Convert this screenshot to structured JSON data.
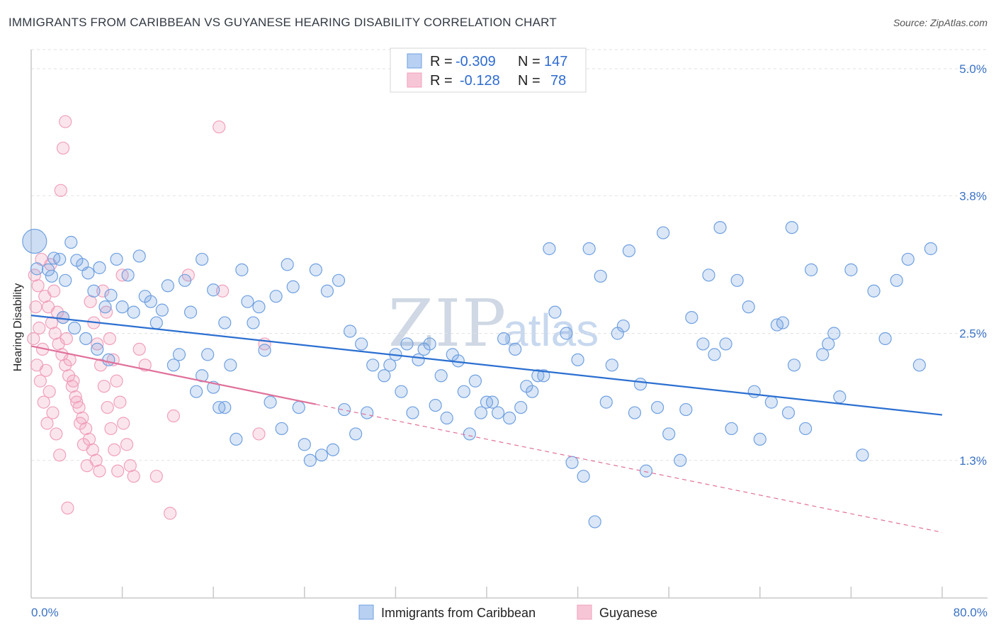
{
  "title": "IMMIGRANTS FROM CARIBBEAN VS GUYANESE HEARING DISABILITY CORRELATION CHART",
  "source": "Source: ZipAtlas.com",
  "watermark": {
    "zip": "ZIP",
    "atlas": "atlas"
  },
  "legend": {
    "rows": [
      {
        "r_label": "R =",
        "r_value": "-0.309",
        "n_label": "N =",
        "n_value": "147"
      },
      {
        "r_label": "R =",
        "r_value": "-0.128",
        "n_label": "N =",
        "n_value": "78"
      }
    ]
  },
  "chart_data": {
    "type": "scatter",
    "title": "IMMIGRANTS FROM CARIBBEAN VS GUYANESE HEARING DISABILITY CORRELATION CHART",
    "xlabel": "",
    "ylabel": "Hearing Disability",
    "xlim": [
      0,
      80
    ],
    "ylim": [
      0,
      5.3
    ],
    "x_tick_labels": [
      "0.0%",
      "80.0%"
    ],
    "y_ticks": [
      1.3,
      2.5,
      3.8,
      5.0
    ],
    "y_tick_labels": [
      "1.3%",
      "2.5%",
      "3.8%",
      "5.0%"
    ],
    "grid": true,
    "legend_position": "top-center",
    "colors": {
      "series1": "#6fa0e0",
      "series2": "#f0a0bc",
      "line1": "#2b6fd1",
      "line2": "#e0709a"
    },
    "series": [
      {
        "name": "Immigrants from Caribbean",
        "r": -0.309,
        "n": 147,
        "trend": {
          "x": [
            0,
            80
          ],
          "y": [
            2.67,
            1.73
          ]
        },
        "points": [
          [
            0.5,
            3.11
          ],
          [
            1.5,
            3.1
          ],
          [
            2.5,
            3.2
          ],
          [
            2.0,
            3.21
          ],
          [
            4.0,
            3.19
          ],
          [
            3.5,
            3.36
          ],
          [
            5.0,
            3.07
          ],
          [
            4.5,
            3.15
          ],
          [
            3.0,
            3.0
          ],
          [
            1.8,
            3.04
          ],
          [
            6.0,
            3.12
          ],
          [
            7.5,
            3.2
          ],
          [
            8.5,
            3.05
          ],
          [
            9.0,
            2.7
          ],
          [
            10.0,
            2.85
          ],
          [
            11.5,
            2.72
          ],
          [
            12.0,
            2.95
          ],
          [
            13.5,
            3.0
          ],
          [
            14.0,
            2.7
          ],
          [
            15.0,
            3.2
          ],
          [
            16.0,
            2.91
          ],
          [
            17.0,
            2.6
          ],
          [
            18.5,
            3.1
          ],
          [
            19.0,
            2.8
          ],
          [
            20.0,
            2.75
          ],
          [
            21.5,
            2.85
          ],
          [
            22.5,
            3.15
          ],
          [
            23.0,
            2.94
          ],
          [
            25.0,
            3.1
          ],
          [
            26.0,
            2.9
          ],
          [
            27.0,
            3.0
          ],
          [
            28.0,
            2.52
          ],
          [
            30.0,
            2.2
          ],
          [
            31.0,
            2.1
          ],
          [
            32.0,
            2.3
          ],
          [
            33.0,
            2.4
          ],
          [
            34.0,
            2.25
          ],
          [
            35.0,
            2.4
          ],
          [
            36.0,
            2.1
          ],
          [
            37.0,
            2.3
          ],
          [
            38.0,
            1.95
          ],
          [
            39.0,
            2.05
          ],
          [
            40.0,
            1.85
          ],
          [
            41.0,
            1.75
          ],
          [
            42.0,
            1.7
          ],
          [
            43.0,
            1.8
          ],
          [
            44.0,
            1.95
          ],
          [
            45.0,
            2.1
          ],
          [
            46.0,
            2.7
          ],
          [
            47.0,
            2.5
          ],
          [
            48.0,
            2.25
          ],
          [
            49.0,
            3.3
          ],
          [
            50.0,
            3.04
          ],
          [
            51.0,
            2.2
          ],
          [
            52.0,
            2.57
          ],
          [
            53.0,
            1.75
          ],
          [
            54.0,
            1.2
          ],
          [
            55.0,
            1.8
          ],
          [
            56.0,
            1.55
          ],
          [
            57.0,
            1.3
          ],
          [
            58.0,
            2.65
          ],
          [
            59.0,
            2.4
          ],
          [
            60.0,
            2.3
          ],
          [
            61.0,
            2.4
          ],
          [
            62.0,
            3.0
          ],
          [
            63.0,
            2.75
          ],
          [
            64.0,
            1.5
          ],
          [
            65.0,
            1.85
          ],
          [
            66.0,
            2.6
          ],
          [
            67.0,
            2.2
          ],
          [
            68.0,
            1.6
          ],
          [
            70.0,
            2.4
          ],
          [
            71.0,
            1.9
          ],
          [
            73.0,
            1.35
          ],
          [
            75.0,
            2.45
          ],
          [
            77.0,
            3.2
          ],
          [
            78.0,
            2.2
          ],
          [
            7.0,
            2.86
          ],
          [
            8.0,
            2.75
          ],
          [
            9.5,
            3.23
          ],
          [
            10.5,
            2.8
          ],
          [
            11.0,
            2.6
          ],
          [
            12.5,
            2.2
          ],
          [
            13.0,
            2.3
          ],
          [
            14.5,
            1.95
          ],
          [
            15.5,
            2.3
          ],
          [
            16.5,
            1.8
          ],
          [
            17.5,
            2.2
          ],
          [
            18.0,
            1.5
          ],
          [
            19.5,
            2.6
          ],
          [
            20.5,
            2.34
          ],
          [
            21.0,
            1.85
          ],
          [
            22.0,
            1.6
          ],
          [
            23.5,
            1.8
          ],
          [
            24.0,
            1.45
          ],
          [
            24.5,
            1.3
          ],
          [
            25.5,
            1.35
          ],
          [
            26.5,
            1.4
          ],
          [
            27.5,
            1.78
          ],
          [
            28.5,
            1.55
          ],
          [
            29.0,
            2.4
          ],
          [
            29.5,
            1.75
          ],
          [
            31.5,
            2.2
          ],
          [
            32.5,
            1.95
          ],
          [
            33.5,
            1.75
          ],
          [
            34.5,
            2.35
          ],
          [
            35.5,
            1.82
          ],
          [
            36.5,
            1.7
          ],
          [
            37.5,
            2.24
          ],
          [
            38.5,
            1.55
          ],
          [
            39.5,
            1.75
          ],
          [
            40.5,
            1.85
          ],
          [
            41.5,
            2.45
          ],
          [
            42.5,
            2.35
          ],
          [
            43.5,
            2.0
          ],
          [
            44.5,
            2.1
          ],
          [
            45.5,
            3.3
          ],
          [
            47.5,
            1.28
          ],
          [
            48.5,
            1.15
          ],
          [
            49.5,
            0.72
          ],
          [
            50.5,
            1.85
          ],
          [
            51.5,
            2.5
          ],
          [
            52.5,
            3.28
          ],
          [
            53.5,
            2.02
          ],
          [
            55.5,
            3.45
          ],
          [
            57.5,
            1.78
          ],
          [
            59.5,
            3.05
          ],
          [
            61.5,
            1.6
          ],
          [
            63.5,
            1.95
          ],
          [
            65.5,
            2.58
          ],
          [
            66.5,
            1.75
          ],
          [
            68.5,
            3.1
          ],
          [
            69.5,
            2.3
          ],
          [
            70.5,
            2.5
          ],
          [
            72.0,
            3.1
          ],
          [
            74.0,
            2.9
          ],
          [
            76.0,
            3.0
          ],
          [
            79.0,
            3.3
          ],
          [
            60.5,
            3.5
          ],
          [
            66.8,
            3.5
          ],
          [
            5.5,
            2.9
          ],
          [
            6.5,
            2.75
          ],
          [
            2.8,
            2.65
          ],
          [
            3.8,
            2.55
          ],
          [
            4.8,
            2.45
          ],
          [
            5.8,
            2.35
          ],
          [
            6.8,
            2.25
          ],
          [
            15.0,
            2.1
          ],
          [
            16.0,
            1.99
          ],
          [
            17.0,
            1.8
          ]
        ]
      },
      {
        "name": "Guyanese",
        "r": -0.128,
        "n": 78,
        "trend": {
          "x": [
            0,
            80
          ],
          "y": [
            2.38,
            0.62
          ]
        },
        "points": [
          [
            0.3,
            3.05
          ],
          [
            0.6,
            2.95
          ],
          [
            0.9,
            3.2
          ],
          [
            1.2,
            2.85
          ],
          [
            1.5,
            2.75
          ],
          [
            1.8,
            2.6
          ],
          [
            2.1,
            2.5
          ],
          [
            2.4,
            2.4
          ],
          [
            2.7,
            2.3
          ],
          [
            3.0,
            2.2
          ],
          [
            3.3,
            2.1
          ],
          [
            3.6,
            2.0
          ],
          [
            3.9,
            1.9
          ],
          [
            4.2,
            1.8
          ],
          [
            4.5,
            1.7
          ],
          [
            4.8,
            1.6
          ],
          [
            5.1,
            1.5
          ],
          [
            5.4,
            1.4
          ],
          [
            5.7,
            1.3
          ],
          [
            6.0,
            1.2
          ],
          [
            6.3,
            2.9
          ],
          [
            6.6,
            2.7
          ],
          [
            6.9,
            2.45
          ],
          [
            7.2,
            2.25
          ],
          [
            7.5,
            2.05
          ],
          [
            7.8,
            1.85
          ],
          [
            8.1,
            1.65
          ],
          [
            8.4,
            1.45
          ],
          [
            8.7,
            1.25
          ],
          [
            9.0,
            1.15
          ],
          [
            0.4,
            2.75
          ],
          [
            0.7,
            2.55
          ],
          [
            1.0,
            2.35
          ],
          [
            1.3,
            2.15
          ],
          [
            1.6,
            1.95
          ],
          [
            1.9,
            1.75
          ],
          [
            2.2,
            1.55
          ],
          [
            2.5,
            1.35
          ],
          [
            2.8,
            2.65
          ],
          [
            3.1,
            2.45
          ],
          [
            3.4,
            2.25
          ],
          [
            3.7,
            2.05
          ],
          [
            4.0,
            1.85
          ],
          [
            4.3,
            1.65
          ],
          [
            4.6,
            1.45
          ],
          [
            4.9,
            1.25
          ],
          [
            5.2,
            2.8
          ],
          [
            5.5,
            2.6
          ],
          [
            5.8,
            2.4
          ],
          [
            6.1,
            2.2
          ],
          [
            6.4,
            2.0
          ],
          [
            6.7,
            1.8
          ],
          [
            7.0,
            1.6
          ],
          [
            7.3,
            1.4
          ],
          [
            7.6,
            1.2
          ],
          [
            3.0,
            4.5
          ],
          [
            2.8,
            4.25
          ],
          [
            2.6,
            3.85
          ],
          [
            16.5,
            4.45
          ],
          [
            13.8,
            3.05
          ],
          [
            16.8,
            2.9
          ],
          [
            20.5,
            2.4
          ],
          [
            20.0,
            1.55
          ],
          [
            12.5,
            1.72
          ],
          [
            12.2,
            0.8
          ],
          [
            3.2,
            0.85
          ],
          [
            9.5,
            2.35
          ],
          [
            10.0,
            2.2
          ],
          [
            11.0,
            1.15
          ],
          [
            8.0,
            3.05
          ],
          [
            0.2,
            2.45
          ],
          [
            0.5,
            2.2
          ],
          [
            0.8,
            2.05
          ],
          [
            1.1,
            1.85
          ],
          [
            1.4,
            1.65
          ],
          [
            1.7,
            3.15
          ],
          [
            2.0,
            2.9
          ],
          [
            2.3,
            2.7
          ]
        ]
      }
    ]
  },
  "bottom_legend": [
    "Immigrants from Caribbean",
    "Guyanese"
  ]
}
